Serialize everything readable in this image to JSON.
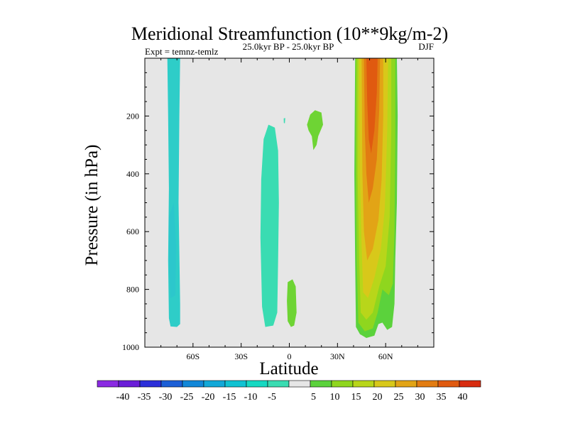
{
  "chart_data": {
    "type": "contour",
    "title": "Meridional Streamfunction (10**9kg/m-2)",
    "left_label": "Expt = temnz-temlz",
    "center_label": "25.0kyr BP - 25.0kyr BP",
    "right_label": "DJF",
    "xlabel": "Latitude",
    "ylabel": "Pressure (in hPa)",
    "xlim": [
      -90,
      90
    ],
    "ylim": [
      1000,
      0
    ],
    "x_ticks": [
      {
        "value": -60,
        "label": "60S"
      },
      {
        "value": -30,
        "label": "30S"
      },
      {
        "value": 0,
        "label": "0"
      },
      {
        "value": 30,
        "label": "30N"
      },
      {
        "value": 60,
        "label": "60N"
      }
    ],
    "y_ticks": [
      {
        "value": 200,
        "label": "200"
      },
      {
        "value": 400,
        "label": "400"
      },
      {
        "value": 600,
        "label": "600"
      },
      {
        "value": 800,
        "label": "800"
      },
      {
        "value": 1000,
        "label": "1000"
      }
    ],
    "colorbar": {
      "labels": [
        "-40",
        "-35",
        "-30",
        "-25",
        "-20",
        "-15",
        "-10",
        "-5",
        "5",
        "10",
        "15",
        "20",
        "25",
        "30",
        "35",
        "40"
      ],
      "colors": [
        "#8A2BE2",
        "#6A1ED8",
        "#2C2FD9",
        "#1C5FD6",
        "#1287D8",
        "#12A8D8",
        "#10C2D2",
        "#16D9C2",
        "#3ADCB2",
        "#E6E6E6",
        "#5BD23C",
        "#8FD61E",
        "#B8D61A",
        "#D8C81A",
        "#E2A416",
        "#E27C12",
        "#E05A10",
        "#D82C10"
      ]
    },
    "regions": [
      {
        "name": "sh-polar-cell",
        "level": "-10",
        "color": "#2CC7CC",
        "fill": "#2ECDC8",
        "outline": [
          [
            -76,
            0
          ],
          [
            -68,
            0
          ],
          [
            -68.5,
            200
          ],
          [
            -69,
            500
          ],
          [
            -68,
            850
          ],
          [
            -68,
            920
          ],
          [
            -70,
            930
          ],
          [
            -74,
            928
          ],
          [
            -75,
            900
          ],
          [
            -75.5,
            700
          ],
          [
            -75,
            450
          ],
          [
            -75.5,
            200
          ]
        ],
        "inner": [
          [
            -75,
            550
          ],
          [
            -72,
            500
          ],
          [
            -70.5,
            650
          ],
          [
            -71,
            820
          ],
          [
            -74,
            830
          ],
          [
            -75,
            700
          ]
        ]
      },
      {
        "name": "sh-subtropical-cell",
        "level": "-5",
        "color": "#3ADCB2",
        "outline": [
          [
            -18,
            620
          ],
          [
            -17.5,
            420
          ],
          [
            -16,
            280
          ],
          [
            -13,
            230
          ],
          [
            -9,
            240
          ],
          [
            -7,
            320
          ],
          [
            -6.5,
            500
          ],
          [
            -7,
            700
          ],
          [
            -7.5,
            880
          ],
          [
            -10,
            925
          ],
          [
            -15,
            930
          ],
          [
            -17,
            860
          ]
        ]
      },
      {
        "name": "small-neg-dot",
        "level": "-5",
        "color": "#3ADCB2",
        "outline": [
          [
            -3.5,
            208
          ],
          [
            -2.5,
            207
          ],
          [
            -2.8,
            225
          ],
          [
            -3.4,
            224
          ]
        ]
      },
      {
        "name": "upper-pos-blob",
        "level": "10",
        "color": "#6ED434",
        "outline": [
          [
            11,
            230
          ],
          [
            13,
            195
          ],
          [
            16,
            180
          ],
          [
            20,
            188
          ],
          [
            21,
            230
          ],
          [
            18,
            270
          ],
          [
            17,
            300
          ],
          [
            15,
            318
          ],
          [
            14,
            270
          ],
          [
            12,
            250
          ]
        ]
      },
      {
        "name": "lower-pos-blob",
        "level": "10",
        "color": "#6ED434",
        "outline": [
          [
            -1,
            775
          ],
          [
            2,
            765
          ],
          [
            4,
            790
          ],
          [
            4.5,
            880
          ],
          [
            3,
            925
          ],
          [
            1,
            930
          ],
          [
            -1,
            910
          ],
          [
            -1.5,
            840
          ]
        ]
      },
      {
        "name": "nh-ferrel-10",
        "level": "10",
        "color": "#5BD23C",
        "outline": [
          [
            41,
            0
          ],
          [
            67,
            0
          ],
          [
            67.5,
            200
          ],
          [
            67,
            500
          ],
          [
            66,
            700
          ],
          [
            65.5,
            850
          ],
          [
            64,
            930
          ],
          [
            61,
            940
          ],
          [
            58,
            915
          ],
          [
            55.5,
            920
          ],
          [
            53,
            960
          ],
          [
            48,
            968
          ],
          [
            44,
            955
          ],
          [
            41.5,
            930
          ],
          [
            41,
            700
          ],
          [
            40.5,
            400
          ]
        ]
      },
      {
        "name": "nh-ferrel-15",
        "level": "15",
        "color": "#8FD61E",
        "outline": [
          [
            41.5,
            0
          ],
          [
            66,
            0
          ],
          [
            66,
            300
          ],
          [
            65.5,
            600
          ],
          [
            64.5,
            780
          ],
          [
            62,
            820
          ],
          [
            58,
            800
          ],
          [
            55,
            880
          ],
          [
            52,
            935
          ],
          [
            47,
            945
          ],
          [
            43,
            915
          ],
          [
            42,
            700
          ],
          [
            41.5,
            400
          ]
        ]
      },
      {
        "name": "nh-ferrel-20",
        "level": "20",
        "color": "#B8D61A",
        "outline": [
          [
            42.5,
            0
          ],
          [
            63.5,
            0
          ],
          [
            63.5,
            250
          ],
          [
            62.5,
            550
          ],
          [
            60,
            720
          ],
          [
            56,
            790
          ],
          [
            52,
            880
          ],
          [
            48,
            905
          ],
          [
            44.5,
            880
          ],
          [
            43.5,
            700
          ],
          [
            42.5,
            400
          ]
        ]
      },
      {
        "name": "nh-ferrel-25",
        "level": "25",
        "color": "#D8C81A",
        "outline": [
          [
            43.5,
            0
          ],
          [
            61.5,
            0
          ],
          [
            61,
            250
          ],
          [
            59.5,
            520
          ],
          [
            57,
            660
          ],
          [
            53,
            760
          ],
          [
            49,
            830
          ],
          [
            46,
            810
          ],
          [
            45,
            650
          ],
          [
            44,
            400
          ]
        ]
      },
      {
        "name": "nh-ferrel-30",
        "level": "30",
        "color": "#E2A416",
        "outline": [
          [
            45,
            0
          ],
          [
            58.5,
            0
          ],
          [
            58.5,
            200
          ],
          [
            57.5,
            420
          ],
          [
            55.5,
            560
          ],
          [
            52,
            660
          ],
          [
            48.5,
            700
          ],
          [
            46.5,
            600
          ],
          [
            45.5,
            400
          ]
        ]
      },
      {
        "name": "nh-ferrel-35",
        "level": "35",
        "color": "#E27C12",
        "outline": [
          [
            46.5,
            0
          ],
          [
            56.5,
            0
          ],
          [
            56,
            180
          ],
          [
            54.5,
            350
          ],
          [
            52,
            450
          ],
          [
            49.5,
            500
          ],
          [
            48,
            400
          ],
          [
            47,
            250
          ]
        ]
      },
      {
        "name": "nh-ferrel-40",
        "level": "40",
        "color": "#E05A10",
        "outline": [
          [
            48,
            0
          ],
          [
            55,
            0
          ],
          [
            54.5,
            120
          ],
          [
            53,
            250
          ],
          [
            51,
            330
          ],
          [
            49.5,
            280
          ],
          [
            48.5,
            150
          ]
        ]
      }
    ]
  }
}
